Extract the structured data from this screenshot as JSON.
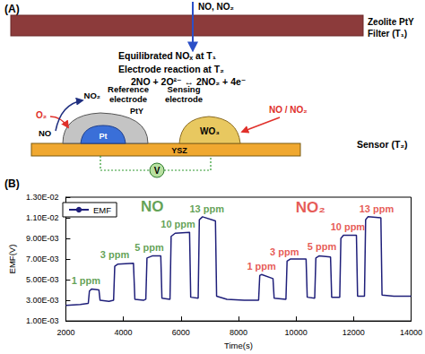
{
  "panel_a": {
    "label": "(A)",
    "inlet": "NO, NO₂",
    "filter_label": [
      "Zeolite PtY",
      "Filter (T₁)"
    ],
    "equilibrated": "Equilibrated NOₓ at T₁",
    "electrode_reaction": "Electrode reaction at T₂",
    "reaction": "2NO + 2O²⁻ ↔ 2NO₂ + 4e⁻",
    "o2": "O₂",
    "no2_out": "NO₂",
    "no_out": "NO",
    "reference_electrode": [
      "Reference",
      "electrode"
    ],
    "sensing_electrode": [
      "Sensing",
      "electrode"
    ],
    "pty": "PtY",
    "pt": "Pt",
    "wo3": "WO₃",
    "gas_in": "NO / NO₂",
    "ysz": "YSZ",
    "voltmeter": "V",
    "sensor_label": "Sensor (T₂)"
  },
  "panel_b": {
    "label": "(B)"
  },
  "chart_data": {
    "type": "line",
    "x_label": "Time(s)",
    "y_label": "EMF(V)",
    "x": [
      2000,
      2500,
      2780,
      2820,
      2900,
      3150,
      3190,
      3500,
      3660,
      3700,
      3800,
      4350,
      4400,
      4700,
      4780,
      4820,
      5000,
      5300,
      5340,
      5620,
      5660,
      5800,
      6300,
      6340,
      6600,
      6640,
      6750,
      7200,
      7240,
      7600,
      8200,
      8700,
      8740,
      8800,
      9200,
      9240,
      9650,
      9690,
      9800,
      10350,
      10390,
      10650,
      10690,
      10800,
      11200,
      11240,
      11520,
      11560,
      11650,
      12100,
      12140,
      12380,
      12420,
      12500,
      12950,
      12990,
      13400,
      14000
    ],
    "series": [
      {
        "name": "EMF",
        "color": "#1f1f7a",
        "values": [
          0.0025,
          0.0026,
          0.0027,
          0.0039,
          0.0041,
          0.004,
          0.003,
          0.0029,
          0.003,
          0.0063,
          0.0065,
          0.0066,
          0.0031,
          0.003,
          0.0031,
          0.0071,
          0.0073,
          0.0073,
          0.0032,
          0.0031,
          0.0092,
          0.0095,
          0.0096,
          0.0033,
          0.0032,
          0.0108,
          0.0111,
          0.0107,
          0.0034,
          0.0031,
          0.003,
          0.003,
          0.0054,
          0.0055,
          0.0051,
          0.0032,
          0.0031,
          0.0068,
          0.007,
          0.007,
          0.0033,
          0.0032,
          0.0071,
          0.0073,
          0.0072,
          0.0033,
          0.0033,
          0.009,
          0.0093,
          0.0093,
          0.0034,
          0.0034,
          0.0108,
          0.0111,
          0.011,
          0.0035,
          0.0034,
          0.0034
        ]
      }
    ],
    "xlim": [
      2000,
      14000
    ],
    "xticks": [
      2000,
      4000,
      6000,
      8000,
      10000,
      12000,
      14000
    ],
    "ylim": [
      0.001,
      0.013
    ],
    "yticks": [
      {
        "value": 0.001,
        "label": "1.00E-03"
      },
      {
        "value": 0.003,
        "label": "3.00E-03"
      },
      {
        "value": 0.005,
        "label": "5.00E-03"
      },
      {
        "value": 0.007,
        "label": "7.00E-03"
      },
      {
        "value": 0.009,
        "label": "9.00E-03"
      },
      {
        "value": 0.011,
        "label": "1.10E-02"
      },
      {
        "value": 0.013,
        "label": "1.30E-02"
      }
    ],
    "grid": false,
    "legend": "upper left",
    "annotations": [
      {
        "text": "NO",
        "kind": "gas",
        "x": 5000,
        "y": 0.0121,
        "color": "#3a8a2a"
      },
      {
        "text": "1 ppm",
        "kind": "concentration",
        "x": 2700,
        "y": 0.0049,
        "color": "#3a8a2a"
      },
      {
        "text": "3 ppm",
        "kind": "concentration",
        "x": 3700,
        "y": 0.0074,
        "color": "#3a8a2a"
      },
      {
        "text": "5 ppm",
        "kind": "concentration",
        "x": 4900,
        "y": 0.0081,
        "color": "#3a8a2a"
      },
      {
        "text": "10 ppm",
        "kind": "concentration",
        "x": 5900,
        "y": 0.0104,
        "color": "#3a8a2a"
      },
      {
        "text": "13 ppm",
        "kind": "concentration",
        "x": 6900,
        "y": 0.0119,
        "color": "#3a8a2a"
      },
      {
        "text": "NO₂",
        "kind": "gas",
        "x": 10500,
        "y": 0.012,
        "color": "#e0302a"
      },
      {
        "text": "1 ppm",
        "kind": "concentration",
        "x": 8800,
        "y": 0.0063,
        "color": "#e0302a"
      },
      {
        "text": "3 ppm",
        "kind": "concentration",
        "x": 9600,
        "y": 0.0077,
        "color": "#e0302a"
      },
      {
        "text": "5 ppm",
        "kind": "concentration",
        "x": 10900,
        "y": 0.0082,
        "color": "#e0302a"
      },
      {
        "text": "10 ppm",
        "kind": "concentration",
        "x": 11800,
        "y": 0.0101,
        "color": "#e0302a"
      },
      {
        "text": "13 ppm",
        "kind": "concentration",
        "x": 12800,
        "y": 0.0119,
        "color": "#e0302a"
      }
    ]
  }
}
